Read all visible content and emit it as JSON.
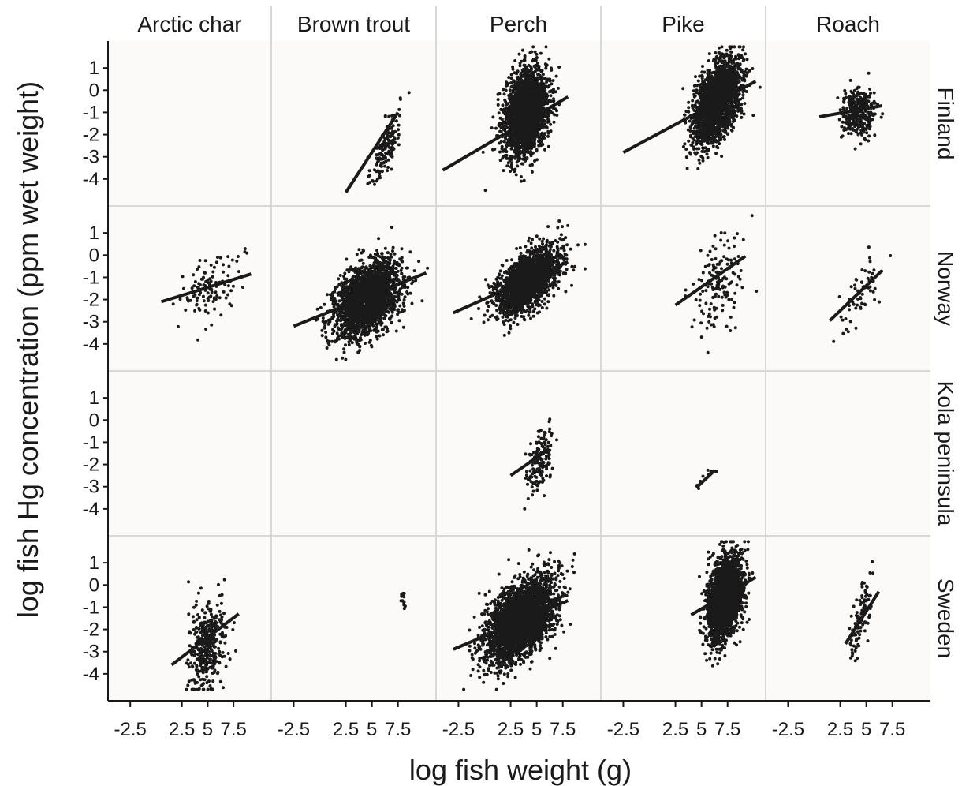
{
  "chart_data": {
    "type": "scatter",
    "facets": {
      "columns": [
        "Arctic char",
        "Brown trout",
        "Perch",
        "Pike",
        "Roach"
      ],
      "rows": [
        "Finland",
        "Norway",
        "Kola peninsula",
        "Sweden"
      ]
    },
    "xlabel": "log fish weight (g)",
    "ylabel": "log fish Hg concentration (ppm wet weight)",
    "xlim": [
      -4.5,
      11
    ],
    "ylim": [
      -5,
      2
    ],
    "xticks": [
      -2.5,
      2.5,
      5,
      7.5
    ],
    "xtick_labels": [
      "-2.5",
      "2.5",
      "5",
      "7.5"
    ],
    "yticks": [
      1,
      0,
      -1,
      -2,
      -3,
      -4
    ],
    "ytick_labels": [
      "1",
      "0",
      "-1",
      "-2",
      "-3",
      "-4"
    ],
    "grid": false,
    "legend": "none",
    "point_color": "#1a1a1a",
    "panel_background": "#fbfaf8",
    "separator_color": "#d8d8d8",
    "panels": [
      {
        "row": "Finland",
        "col": "Arctic char",
        "n": 0
      },
      {
        "row": "Finland",
        "col": "Brown trout",
        "n": 150,
        "cx": 6.3,
        "cy": -2.6,
        "sx": 0.7,
        "sy": 0.85,
        "rho": 0.75,
        "fit": {
          "x0": 2.5,
          "y0": -4.6,
          "x1": 7.5,
          "y1": -1.0
        }
      },
      {
        "row": "Finland",
        "col": "Perch",
        "n": 2600,
        "cx": 4.0,
        "cy": -1.0,
        "sx": 1.0,
        "sy": 0.95,
        "rho": 0.25,
        "fit": {
          "x0": -4.0,
          "y0": -3.6,
          "x1": 8.0,
          "y1": -0.3
        }
      },
      {
        "row": "Finland",
        "col": "Pike",
        "n": 2300,
        "cx": 6.5,
        "cy": -0.5,
        "sx": 1.1,
        "sy": 0.9,
        "rho": 0.5,
        "fit": {
          "x0": -2.5,
          "y0": -2.8,
          "x1": 10.2,
          "y1": 0.4
        }
      },
      {
        "row": "Finland",
        "col": "Roach",
        "n": 350,
        "cx": 4.2,
        "cy": -1.0,
        "sx": 0.8,
        "sy": 0.55,
        "rho": 0.1,
        "fit": {
          "x0": 0.5,
          "y0": -1.2,
          "x1": 6.5,
          "y1": -0.7
        }
      },
      {
        "row": "Norway",
        "col": "Arctic char",
        "n": 110,
        "cx": 5.2,
        "cy": -1.5,
        "sx": 1.4,
        "sy": 0.85,
        "rho": 0.4,
        "fit": {
          "x0": 0.5,
          "y0": -2.1,
          "x1": 9.2,
          "y1": -0.85
        }
      },
      {
        "row": "Norway",
        "col": "Brown trout",
        "n": 2200,
        "cx": 4.5,
        "cy": -2.0,
        "sx": 1.6,
        "sy": 0.85,
        "rho": 0.45,
        "fit": {
          "x0": -2.5,
          "y0": -3.2,
          "x1": 10.2,
          "y1": -0.8
        }
      },
      {
        "row": "Norway",
        "col": "Perch",
        "n": 1900,
        "cx": 4.0,
        "cy": -1.2,
        "sx": 1.5,
        "sy": 0.75,
        "rho": 0.55,
        "fit": {
          "x0": -3.0,
          "y0": -2.6,
          "x1": 8.0,
          "y1": -0.3
        }
      },
      {
        "row": "Norway",
        "col": "Pike",
        "n": 150,
        "cx": 6.5,
        "cy": -1.4,
        "sx": 1.3,
        "sy": 1.05,
        "rho": 0.4,
        "fit": {
          "x0": 2.5,
          "y0": -2.25,
          "x1": 9.2,
          "y1": -0.05
        }
      },
      {
        "row": "Norway",
        "col": "Roach",
        "n": 60,
        "cx": 4.6,
        "cy": -1.7,
        "sx": 1.1,
        "sy": 0.85,
        "rho": 0.65,
        "fit": {
          "x0": 1.5,
          "y0": -2.95,
          "x1": 6.5,
          "y1": -0.7
        }
      },
      {
        "row": "Kola peninsula",
        "col": "Arctic char",
        "n": 0
      },
      {
        "row": "Kola peninsula",
        "col": "Brown trout",
        "n": 0
      },
      {
        "row": "Kola peninsula",
        "col": "Perch",
        "n": 160,
        "cx": 5.3,
        "cy": -1.9,
        "sx": 0.6,
        "sy": 0.75,
        "rho": 0.45,
        "fit": {
          "x0": 2.5,
          "y0": -2.5,
          "x1": 6.2,
          "y1": -1.3
        }
      },
      {
        "row": "Kola peninsula",
        "col": "Pike",
        "n": 12,
        "cx": 5.2,
        "cy": -2.7,
        "sx": 0.5,
        "sy": 0.3,
        "rho": 0.85,
        "fit": {
          "x0": 4.5,
          "y0": -3.05,
          "x1": 6.3,
          "y1": -2.25
        }
      },
      {
        "row": "Sweden",
        "col": "Arctic char",
        "n": 380,
        "cx": 5.0,
        "cy": -2.7,
        "sx": 0.9,
        "sy": 1.05,
        "rho": 0.3,
        "fit": {
          "x0": 1.5,
          "y0": -3.6,
          "x1": 8.0,
          "y1": -1.3
        }
      },
      {
        "row": "Sweden",
        "col": "Brown trout",
        "n": 14,
        "cx": 8.0,
        "cy": -0.7,
        "sx": 0.1,
        "sy": 0.2,
        "rho": 0.0
      },
      {
        "row": "Sweden",
        "col": "Perch",
        "n": 3200,
        "cx": 3.4,
        "cy": -1.6,
        "sx": 1.6,
        "sy": 0.9,
        "rho": 0.5,
        "fit": {
          "x0": -3.0,
          "y0": -2.9,
          "x1": 8.0,
          "y1": -0.7
        }
      },
      {
        "row": "Sweden",
        "col": "Pike",
        "n": 2600,
        "cx": 7.2,
        "cy": -0.6,
        "sx": 0.8,
        "sy": 0.9,
        "rho": 0.3,
        "fit": {
          "x0": 4.0,
          "y0": -1.35,
          "x1": 10.2,
          "y1": 0.35
        }
      },
      {
        "row": "Sweden",
        "col": "Roach",
        "n": 100,
        "cx": 4.5,
        "cy": -1.5,
        "sx": 0.5,
        "sy": 0.85,
        "rho": 0.7,
        "fit": {
          "x0": 3.0,
          "y0": -2.65,
          "x1": 6.2,
          "y1": -0.3
        }
      }
    ]
  }
}
